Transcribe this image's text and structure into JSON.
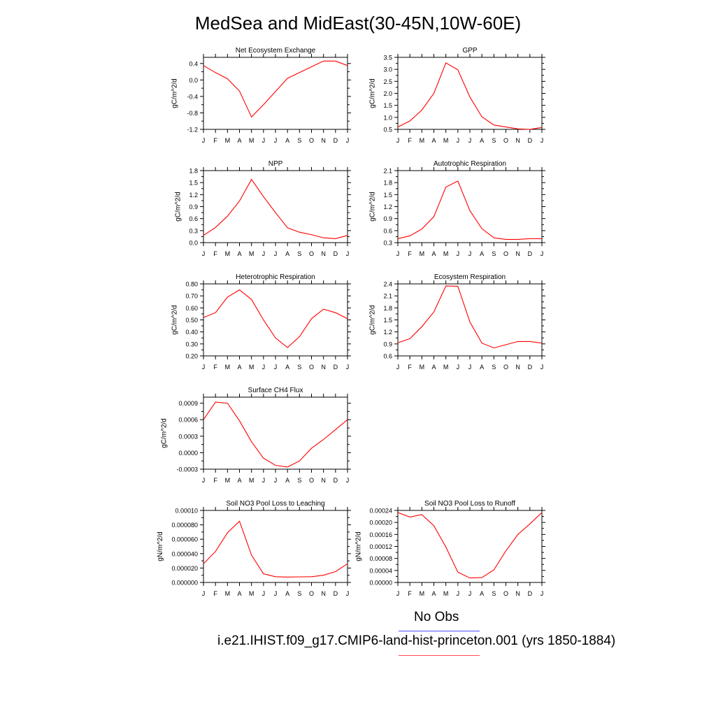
{
  "title": "MedSea and MidEast(30-45N,10W-60E)",
  "legend": {
    "obs_label": "No Obs",
    "model_label": "i.e21.IHIST.f09_g17.CMIP6-land-hist-princeton.001 (yrs 1850-1884)",
    "obs_color": "#4d4dff",
    "model_color": "#ff4d4d"
  },
  "line_color": "#ff0000",
  "chart_data": [
    {
      "type": "line",
      "title": "Net Ecosystem Exchange",
      "ylabel": "gC/m^2/d",
      "x": [
        "J",
        "F",
        "M",
        "A",
        "M",
        "J",
        "J",
        "A",
        "S",
        "O",
        "N",
        "D",
        "J"
      ],
      "ylim": [
        -1.2,
        0.55
      ],
      "yticks": [
        -1.2,
        -0.8,
        -0.4,
        0.0,
        0.4
      ],
      "ytick_labels": [
        "-1.2",
        "-0.8",
        "-0.4",
        "0.0",
        "0.4"
      ],
      "series": [
        {
          "values": [
            0.35,
            0.18,
            0.03,
            -0.27,
            -0.9,
            -0.6,
            -0.28,
            0.04,
            0.18,
            0.32,
            0.46,
            0.46,
            0.35
          ]
        }
      ]
    },
    {
      "type": "line",
      "title": "GPP",
      "ylabel": "gC/m^2/d",
      "x": [
        "J",
        "F",
        "M",
        "A",
        "M",
        "J",
        "J",
        "A",
        "S",
        "O",
        "N",
        "D",
        "J"
      ],
      "ylim": [
        0.5,
        3.5
      ],
      "yticks": [
        0.5,
        1.0,
        1.5,
        2.0,
        2.5,
        3.0,
        3.5
      ],
      "ytick_labels": [
        "0.5",
        "1.0",
        "1.5",
        "2.0",
        "2.5",
        "3.0",
        "3.5"
      ],
      "series": [
        {
          "values": [
            0.6,
            0.85,
            1.3,
            2.0,
            3.27,
            2.98,
            1.85,
            1.02,
            0.68,
            0.6,
            0.52,
            0.5,
            0.58
          ]
        }
      ]
    },
    {
      "type": "line",
      "title": "NPP",
      "ylabel": "gC/m^2/d",
      "x": [
        "J",
        "F",
        "M",
        "A",
        "M",
        "J",
        "J",
        "A",
        "S",
        "O",
        "N",
        "D",
        "J"
      ],
      "ylim": [
        0.0,
        1.8
      ],
      "yticks": [
        0.0,
        0.3,
        0.6,
        0.9,
        1.2,
        1.5,
        1.8
      ],
      "ytick_labels": [
        "0.0",
        "0.3",
        "0.6",
        "0.9",
        "1.2",
        "1.5",
        "1.8"
      ],
      "series": [
        {
          "values": [
            0.18,
            0.38,
            0.66,
            1.04,
            1.58,
            1.15,
            0.75,
            0.37,
            0.26,
            0.2,
            0.12,
            0.1,
            0.18
          ]
        }
      ]
    },
    {
      "type": "line",
      "title": "Autotrophic Respiration",
      "ylabel": "gC/m^2/d",
      "x": [
        "J",
        "F",
        "M",
        "A",
        "M",
        "J",
        "J",
        "A",
        "S",
        "O",
        "N",
        "D",
        "J"
      ],
      "ylim": [
        0.3,
        2.1
      ],
      "yticks": [
        0.3,
        0.6,
        0.9,
        1.2,
        1.5,
        1.8,
        2.1
      ],
      "ytick_labels": [
        "0.3",
        "0.6",
        "0.9",
        "1.2",
        "1.5",
        "1.8",
        "2.1"
      ],
      "series": [
        {
          "values": [
            0.4,
            0.47,
            0.64,
            0.95,
            1.69,
            1.84,
            1.1,
            0.65,
            0.42,
            0.38,
            0.38,
            0.4,
            0.4
          ]
        }
      ]
    },
    {
      "type": "line",
      "title": "Heterotrophic Respiration",
      "ylabel": "gC/m^2/d",
      "x": [
        "J",
        "F",
        "M",
        "A",
        "M",
        "J",
        "J",
        "A",
        "S",
        "O",
        "N",
        "D",
        "J"
      ],
      "ylim": [
        0.2,
        0.8
      ],
      "yticks": [
        0.2,
        0.3,
        0.4,
        0.5,
        0.6,
        0.7,
        0.8
      ],
      "ytick_labels": [
        "0.20",
        "0.30",
        "0.40",
        "0.50",
        "0.60",
        "0.70",
        "0.80"
      ],
      "series": [
        {
          "values": [
            0.52,
            0.56,
            0.69,
            0.75,
            0.67,
            0.5,
            0.35,
            0.27,
            0.36,
            0.51,
            0.59,
            0.56,
            0.51
          ]
        }
      ]
    },
    {
      "type": "line",
      "title": "Ecosystem Respiration",
      "ylabel": "gC/m^2/d",
      "x": [
        "J",
        "F",
        "M",
        "A",
        "M",
        "J",
        "J",
        "A",
        "S",
        "O",
        "N",
        "D",
        "J"
      ],
      "ylim": [
        0.6,
        2.4
      ],
      "yticks": [
        0.6,
        0.9,
        1.2,
        1.5,
        1.8,
        2.1,
        2.4
      ],
      "ytick_labels": [
        "0.6",
        "0.9",
        "1.2",
        "1.5",
        "1.8",
        "2.1",
        "2.4"
      ],
      "series": [
        {
          "values": [
            0.93,
            1.03,
            1.33,
            1.7,
            2.35,
            2.34,
            1.45,
            0.92,
            0.8,
            0.88,
            0.96,
            0.96,
            0.92
          ]
        }
      ]
    },
    {
      "type": "line",
      "title": "Surface CH4 Flux",
      "ylabel": "gC/m^2/d",
      "x": [
        "J",
        "F",
        "M",
        "A",
        "M",
        "J",
        "J",
        "A",
        "S",
        "O",
        "N",
        "D",
        "J"
      ],
      "ylim": [
        -0.0003,
        0.00101
      ],
      "yticks": [
        -0.0003,
        0.0,
        0.0003,
        0.0006,
        0.0009
      ],
      "ytick_labels": [
        "-0.0003",
        "0.0000",
        "0.0003",
        "0.0006",
        "0.0009"
      ],
      "series": [
        {
          "values": [
            0.0006,
            0.00092,
            0.0009,
            0.00058,
            0.0002,
            -0.0001,
            -0.00023,
            -0.00026,
            -0.00015,
            8e-05,
            0.00024,
            0.00042,
            0.0006
          ]
        }
      ]
    },
    {
      "type": "line",
      "title": "Soil NO3 Pool Loss to Leaching",
      "ylabel": "gN/m^2/d",
      "x": [
        "J",
        "F",
        "M",
        "A",
        "M",
        "J",
        "J",
        "A",
        "S",
        "O",
        "N",
        "D",
        "J"
      ],
      "ylim": [
        0.0,
        0.0001
      ],
      "yticks": [
        0.0,
        2e-05,
        4e-05,
        6e-05,
        8e-05,
        0.0001
      ],
      "ytick_labels": [
        "0.000000",
        "0.000020",
        "0.000040",
        "0.000060",
        "0.000080",
        "0.00010"
      ],
      "series": [
        {
          "values": [
            2.6e-05,
            4.3e-05,
            6.9e-05,
            8.5e-05,
            3.8e-05,
            1.2e-05,
            8e-06,
            7.5e-06,
            7.8e-06,
            8e-06,
            1e-05,
            1.5e-05,
            2.6e-05
          ]
        }
      ]
    },
    {
      "type": "line",
      "title": "Soil NO3 Pool Loss to Runoff",
      "ylabel": "gN/m^2/d",
      "x": [
        "J",
        "F",
        "M",
        "A",
        "M",
        "J",
        "J",
        "A",
        "S",
        "O",
        "N",
        "D",
        "J"
      ],
      "ylim": [
        0.0,
        0.00024
      ],
      "yticks": [
        0.0,
        4e-05,
        8e-05,
        0.00012,
        0.00016,
        0.0002,
        0.00024
      ],
      "ytick_labels": [
        "0.00000",
        "0.00004",
        "0.00008",
        "0.00012",
        "0.00016",
        "0.00020",
        "0.00024"
      ],
      "series": [
        {
          "values": [
            0.000233,
            0.000218,
            0.000226,
            0.000189,
            0.000118,
            3.4e-05,
            1.5e-05,
            1.6e-05,
            4.2e-05,
            0.000105,
            0.00016,
            0.000195,
            0.000233
          ]
        }
      ]
    }
  ]
}
